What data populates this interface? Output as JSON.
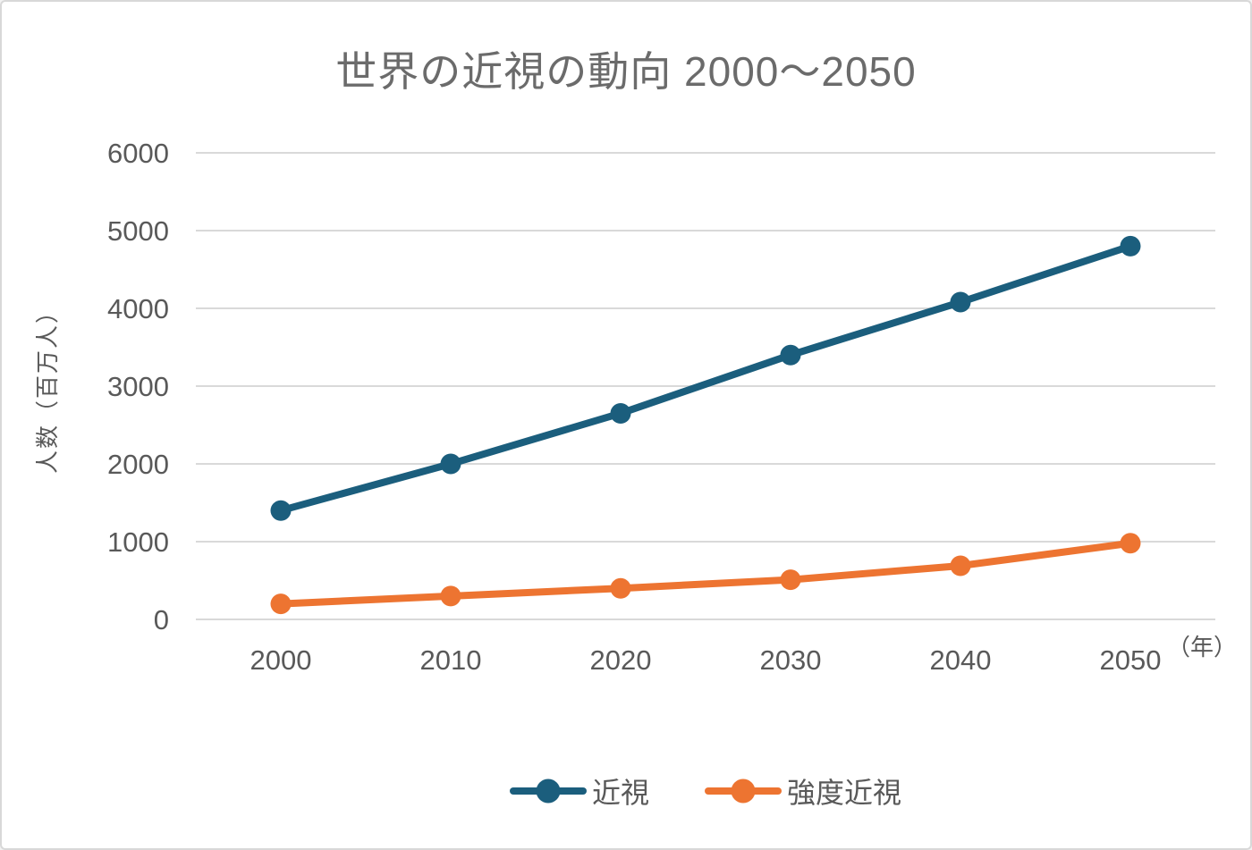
{
  "title": "世界の近視の動向 2000～2050",
  "chart_data": {
    "type": "line",
    "categories": [
      "2000",
      "2010",
      "2020",
      "2030",
      "2040",
      "2050"
    ],
    "series": [
      {
        "name": "近視",
        "color": "#1b5e7d",
        "values": [
          1400,
          2000,
          2650,
          3400,
          4080,
          4800
        ]
      },
      {
        "name": "強度近視",
        "color": "#ed7431",
        "values": [
          200,
          300,
          400,
          510,
          690,
          980
        ]
      }
    ],
    "xlabel_unit": "（年）",
    "ylabel": "人数（百万人）",
    "ylim": [
      0,
      6000
    ],
    "yticks": [
      0,
      1000,
      2000,
      3000,
      4000,
      5000,
      6000
    ],
    "grid": true,
    "legend_position": "bottom"
  },
  "style": {
    "gridline_color": "#d9d9d9",
    "tick_label_color": "#595959",
    "title_color": "#6b6b6b",
    "background_color": "#ffffff"
  }
}
